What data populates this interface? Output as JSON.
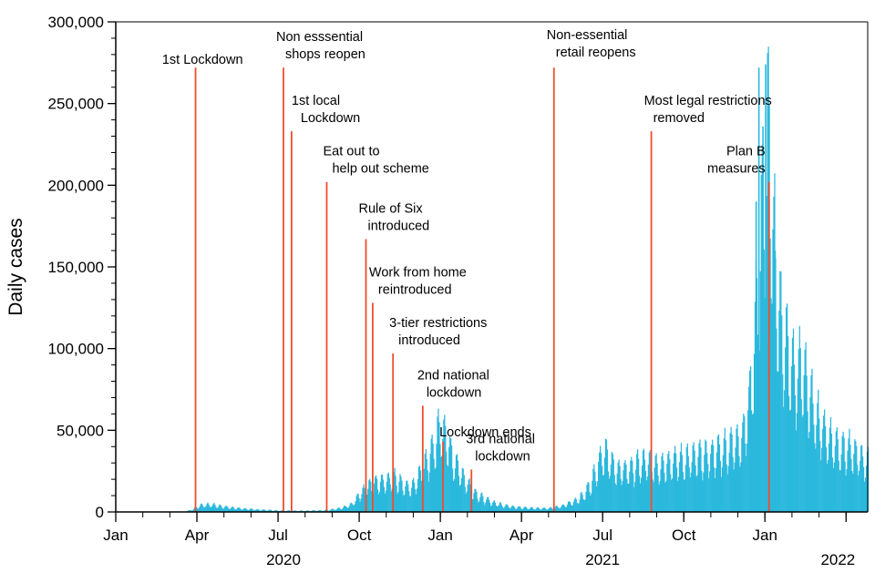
{
  "chart_data": {
    "type": "bar",
    "title": "",
    "xlabel": "",
    "ylabel": "Daily cases",
    "ylim": [
      0,
      300000
    ],
    "y_ticks": [
      0,
      50000,
      100000,
      150000,
      200000,
      250000,
      300000
    ],
    "y_tick_labels": [
      "0",
      "50,000",
      "100,000",
      "150,000",
      "200,000",
      "250,000",
      "300,000"
    ],
    "x_start_month": 0,
    "x_end_month": 27.8,
    "x_ticks": [
      {
        "month": 0,
        "label": "Jan"
      },
      {
        "month": 3,
        "label": "Apr"
      },
      {
        "month": 6,
        "label": "Jul"
      },
      {
        "month": 9,
        "label": "Oct"
      },
      {
        "month": 12,
        "label": "Jan"
      },
      {
        "month": 15,
        "label": "Apr"
      },
      {
        "month": 18,
        "label": "Jul"
      },
      {
        "month": 21,
        "label": "Oct"
      },
      {
        "month": 24,
        "label": "Jan"
      },
      {
        "month": 27,
        "label": ""
      }
    ],
    "year_labels": [
      {
        "month": 6.2,
        "label": "2020"
      },
      {
        "month": 18.0,
        "label": "2021"
      },
      {
        "month": 26.7,
        "label": "2022"
      }
    ],
    "bar_color": "#2bb8dd",
    "event_color": "#ee4e2c",
    "series": [
      {
        "name": "Daily cases",
        "key_points_month_value": [
          [
            0,
            0
          ],
          [
            2.5,
            0
          ],
          [
            2.8,
            1500
          ],
          [
            3.1,
            4500
          ],
          [
            3.5,
            5000
          ],
          [
            4.0,
            3500
          ],
          [
            4.5,
            2500
          ],
          [
            5.0,
            1800
          ],
          [
            6.0,
            900
          ],
          [
            7.0,
            800
          ],
          [
            7.8,
            1200
          ],
          [
            8.3,
            2500
          ],
          [
            8.7,
            5000
          ],
          [
            9.0,
            12000
          ],
          [
            9.3,
            18000
          ],
          [
            9.6,
            20000
          ],
          [
            10.0,
            22000
          ],
          [
            10.3,
            24000
          ],
          [
            10.6,
            19000
          ],
          [
            10.9,
            16000
          ],
          [
            11.2,
            25000
          ],
          [
            11.5,
            35000
          ],
          [
            11.8,
            48000
          ],
          [
            12.0,
            60000
          ],
          [
            12.2,
            50000
          ],
          [
            12.5,
            35000
          ],
          [
            12.8,
            25000
          ],
          [
            13.2,
            14000
          ],
          [
            13.6,
            9000
          ],
          [
            14.0,
            6000
          ],
          [
            14.5,
            4000
          ],
          [
            15.0,
            3000
          ],
          [
            15.5,
            2500
          ],
          [
            16.0,
            2500
          ],
          [
            16.5,
            4000
          ],
          [
            17.0,
            8000
          ],
          [
            17.3,
            12000
          ],
          [
            17.6,
            22000
          ],
          [
            17.9,
            38000
          ],
          [
            18.1,
            42000
          ],
          [
            18.3,
            33000
          ],
          [
            18.6,
            28000
          ],
          [
            19.0,
            30000
          ],
          [
            19.5,
            34000
          ],
          [
            20.0,
            32000
          ],
          [
            20.5,
            35000
          ],
          [
            21.0,
            36000
          ],
          [
            21.5,
            38000
          ],
          [
            22.0,
            40000
          ],
          [
            22.5,
            44000
          ],
          [
            22.9,
            48000
          ],
          [
            23.2,
            55000
          ],
          [
            23.4,
            75000
          ],
          [
            23.6,
            120000
          ],
          [
            23.8,
            180000
          ],
          [
            24.0,
            230000
          ],
          [
            24.1,
            262000
          ],
          [
            24.25,
            200000
          ],
          [
            24.5,
            140000
          ],
          [
            24.8,
            110000
          ],
          [
            25.1,
            95000
          ],
          [
            25.4,
            100000
          ],
          [
            25.7,
            75000
          ],
          [
            26.0,
            62000
          ],
          [
            26.4,
            50000
          ],
          [
            26.8,
            45000
          ],
          [
            27.2,
            42000
          ],
          [
            27.5,
            38000
          ],
          [
            27.75,
            35000
          ]
        ]
      }
    ],
    "spikes": [
      {
        "month": 23.75,
        "value": 272000
      },
      {
        "month": 24.0,
        "value": 274000
      },
      {
        "month": 23.9,
        "value": 236000
      },
      {
        "month": 24.35,
        "value": 160000
      },
      {
        "month": 23.65,
        "value": 190000
      }
    ],
    "annotations": [
      {
        "month": 2.95,
        "top": 272000,
        "lines": [
          "1st Lockdown"
        ],
        "anchor": "end",
        "dx": 52,
        "dy": -4
      },
      {
        "month": 6.2,
        "top": 272000,
        "lines": [
          "Non esssential",
          "shops reopen"
        ],
        "anchor": "start",
        "dx": -8,
        "dy": -10
      },
      {
        "month": 6.5,
        "top": 233000,
        "lines": [
          "1st local",
          "Lockdown"
        ],
        "anchor": "start",
        "dx": 0,
        "dy": -10
      },
      {
        "month": 7.8,
        "top": 202000,
        "lines": [
          "Eat out to",
          "help out scheme"
        ],
        "anchor": "start",
        "dx": -4,
        "dy": -10
      },
      {
        "month": 9.25,
        "top": 167000,
        "lines": [
          "Rule of Six",
          "introduced"
        ],
        "anchor": "start",
        "dx": -8,
        "dy": -10
      },
      {
        "month": 9.5,
        "top": 128000,
        "lines": [
          "Work from home",
          "reintroduced"
        ],
        "anchor": "start",
        "dx": -4,
        "dy": -10
      },
      {
        "month": 10.25,
        "top": 97000,
        "lines": [
          "3-tier restrictions",
          "introduced"
        ],
        "anchor": "start",
        "dx": -4,
        "dy": -10
      },
      {
        "month": 11.35,
        "top": 65000,
        "lines": [
          "2nd national",
          "lockdown"
        ],
        "anchor": "start",
        "dx": -6,
        "dy": -10
      },
      {
        "month": 12.1,
        "top": 43000,
        "lines": [
          "Lockdown ends"
        ],
        "anchor": "start",
        "dx": -4,
        "dy": -6
      },
      {
        "month": 13.15,
        "top": 26000,
        "lines": [
          "3rd national",
          "lockdown"
        ],
        "anchor": "start",
        "dx": -6,
        "dy": -10
      },
      {
        "month": 16.2,
        "top": 272000,
        "lines": [
          "Non-essential",
          "retail reopens"
        ],
        "anchor": "start",
        "dx": -8,
        "dy": -12
      },
      {
        "month": 19.8,
        "top": 233000,
        "lines": [
          "Most legal restrictions",
          "removed"
        ],
        "anchor": "start",
        "dx": -8,
        "dy": -10
      },
      {
        "month": 24.15,
        "top": 202000,
        "lines": [
          "Plan B",
          "measures"
        ],
        "anchor": "end",
        "dx": -4,
        "dy": -10
      }
    ]
  }
}
